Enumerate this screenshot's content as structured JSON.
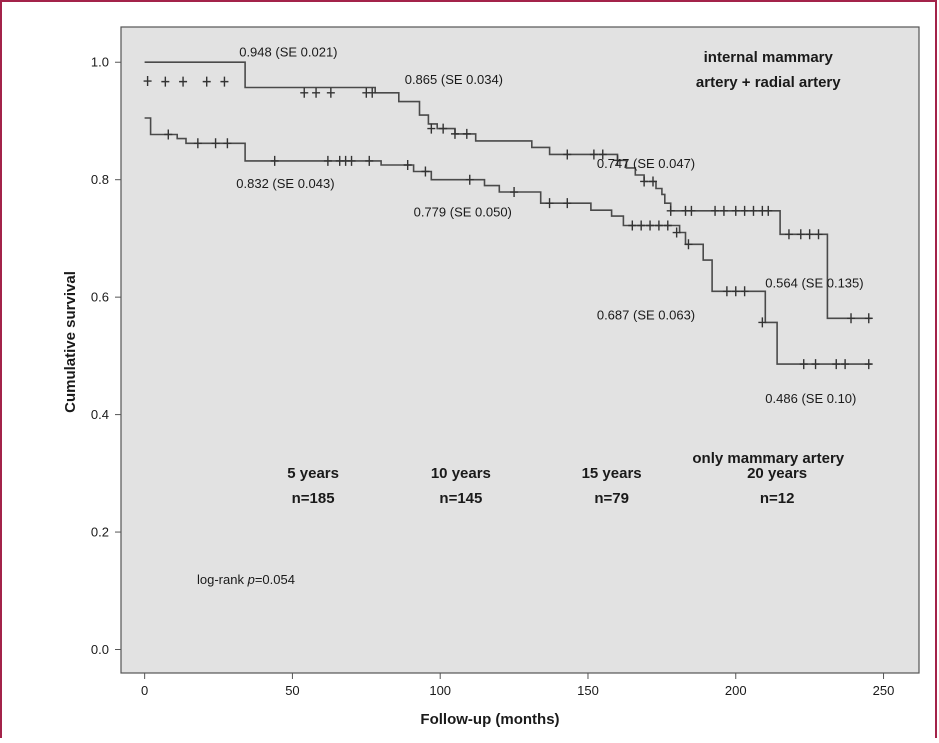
{
  "chart_data": {
    "type": "line",
    "chart_kind": "kaplan-meier",
    "xlabel": "Follow-up (months)",
    "ylabel": "Cumulative survival",
    "xlim": [
      -8,
      262
    ],
    "ylim": [
      -0.04,
      1.06
    ],
    "x_ticks": [
      0,
      50,
      100,
      150,
      200,
      250
    ],
    "y_ticks": [
      0.0,
      0.2,
      0.4,
      0.6,
      0.8,
      1.0
    ],
    "x_tick_labels": [
      "0",
      "50",
      "100",
      "150",
      "200",
      "250"
    ],
    "y_tick_labels": [
      "0.0",
      "0.2",
      "0.4",
      "0.6",
      "0.8",
      "1.0"
    ],
    "background_color": "#e2e2e2",
    "line_color": "#4a4a4a",
    "series": [
      {
        "name": "internal mammary artery + radial artery",
        "steps": [
          [
            0,
            1.0
          ],
          [
            34,
            0.957
          ],
          [
            78,
            0.948
          ],
          [
            86,
            0.933
          ],
          [
            93,
            0.91
          ],
          [
            96,
            0.895
          ],
          [
            99,
            0.887
          ],
          [
            105,
            0.878
          ],
          [
            112,
            0.866
          ],
          [
            128,
            0.866
          ],
          [
            131,
            0.855
          ],
          [
            137,
            0.843
          ],
          [
            155,
            0.843
          ],
          [
            160,
            0.833
          ],
          [
            163,
            0.82
          ],
          [
            166,
            0.808
          ],
          [
            169,
            0.797
          ],
          [
            173,
            0.785
          ],
          [
            175,
            0.775
          ],
          [
            176,
            0.76
          ],
          [
            178,
            0.747
          ],
          [
            213,
            0.747
          ],
          [
            215,
            0.707
          ],
          [
            229,
            0.707
          ],
          [
            231,
            0.564
          ],
          [
            246,
            0.564
          ]
        ],
        "censored": [
          [
            7,
            0.967
          ],
          [
            13,
            0.967
          ],
          [
            21,
            0.967
          ],
          [
            27,
            0.967
          ],
          [
            54,
            0.948
          ],
          [
            58,
            0.948
          ],
          [
            63,
            0.948
          ],
          [
            75,
            0.948
          ],
          [
            77,
            0.948
          ],
          [
            97,
            0.887
          ],
          [
            101,
            0.887
          ],
          [
            105,
            0.878
          ],
          [
            109,
            0.878
          ],
          [
            143,
            0.843
          ],
          [
            152,
            0.843
          ],
          [
            155,
            0.843
          ],
          [
            160,
            0.833
          ],
          [
            169,
            0.797
          ],
          [
            172,
            0.797
          ],
          [
            178,
            0.747
          ],
          [
            183,
            0.747
          ],
          [
            185,
            0.747
          ],
          [
            193,
            0.747
          ],
          [
            196,
            0.747
          ],
          [
            200,
            0.747
          ],
          [
            203,
            0.747
          ],
          [
            206,
            0.747
          ],
          [
            209,
            0.747
          ],
          [
            211,
            0.747
          ],
          [
            218,
            0.707
          ],
          [
            222,
            0.707
          ],
          [
            225,
            0.707
          ],
          [
            228,
            0.707
          ],
          [
            239,
            0.564
          ],
          [
            245,
            0.564
          ]
        ]
      },
      {
        "name": "only mammary artery",
        "steps": [
          [
            0,
            0.905
          ],
          [
            2,
            0.877
          ],
          [
            11,
            0.87
          ],
          [
            14,
            0.862
          ],
          [
            34,
            0.832
          ],
          [
            80,
            0.825
          ],
          [
            91,
            0.814
          ],
          [
            97,
            0.8
          ],
          [
            115,
            0.79
          ],
          [
            120,
            0.779
          ],
          [
            134,
            0.76
          ],
          [
            151,
            0.748
          ],
          [
            158,
            0.738
          ],
          [
            162,
            0.722
          ],
          [
            181,
            0.71
          ],
          [
            183,
            0.69
          ],
          [
            189,
            0.663
          ],
          [
            192,
            0.61
          ],
          [
            210,
            0.557
          ],
          [
            214,
            0.486
          ],
          [
            246,
            0.486
          ]
        ],
        "censored": [
          [
            1,
            0.968
          ],
          [
            8,
            0.877
          ],
          [
            18,
            0.862
          ],
          [
            24,
            0.862
          ],
          [
            28,
            0.862
          ],
          [
            44,
            0.832
          ],
          [
            62,
            0.832
          ],
          [
            66,
            0.832
          ],
          [
            68,
            0.832
          ],
          [
            70,
            0.832
          ],
          [
            76,
            0.832
          ],
          [
            89,
            0.825
          ],
          [
            95,
            0.814
          ],
          [
            110,
            0.8
          ],
          [
            125,
            0.779
          ],
          [
            137,
            0.76
          ],
          [
            143,
            0.76
          ],
          [
            165,
            0.722
          ],
          [
            168,
            0.722
          ],
          [
            171,
            0.722
          ],
          [
            174,
            0.722
          ],
          [
            177,
            0.722
          ],
          [
            180,
            0.71
          ],
          [
            184,
            0.69
          ],
          [
            197,
            0.61
          ],
          [
            200,
            0.61
          ],
          [
            203,
            0.61
          ],
          [
            209,
            0.557
          ],
          [
            223,
            0.486
          ],
          [
            227,
            0.486
          ],
          [
            234,
            0.486
          ],
          [
            237,
            0.486
          ],
          [
            245,
            0.486
          ]
        ]
      }
    ],
    "annotations": [
      {
        "text": "0.948  (SE 0.021)",
        "x": 32,
        "y": 1.01
      },
      {
        "text": "0.865  (SE 0.034)",
        "x": 88,
        "y": 0.963
      },
      {
        "text": "0.747  (SE 0.047)",
        "x": 153,
        "y": 0.82
      },
      {
        "text": "0.564  (SE 0.135)",
        "x": 210,
        "y": 0.616
      },
      {
        "text": "0.832  (SE 0.043)",
        "x": 31,
        "y": 0.786
      },
      {
        "text": "0.779  (SE 0.050)",
        "x": 91,
        "y": 0.737
      },
      {
        "text": "0.687  (SE 0.063)",
        "x": 153,
        "y": 0.562
      },
      {
        "text": "0.486  (SE 0.10)",
        "x": 210,
        "y": 0.42
      }
    ],
    "curve_labels": [
      {
        "lines": [
          "internal mammary",
          "artery + radial artery"
        ],
        "x": 211,
        "y": 1.0
      },
      {
        "lines": [
          "only mammary artery"
        ],
        "x": 211,
        "y": 0.318
      }
    ],
    "at_risk": [
      {
        "lines": [
          "5 years",
          "n=185"
        ],
        "x": 57
      },
      {
        "lines": [
          "10 years",
          "n=145"
        ],
        "x": 107
      },
      {
        "lines": [
          "15 years",
          "n=79"
        ],
        "x": 158
      },
      {
        "lines": [
          "20 years",
          "n=12"
        ],
        "x": 214
      }
    ],
    "log_rank": {
      "prefix": "log-rank ",
      "italic": "p",
      "suffix": "=0.054"
    }
  }
}
